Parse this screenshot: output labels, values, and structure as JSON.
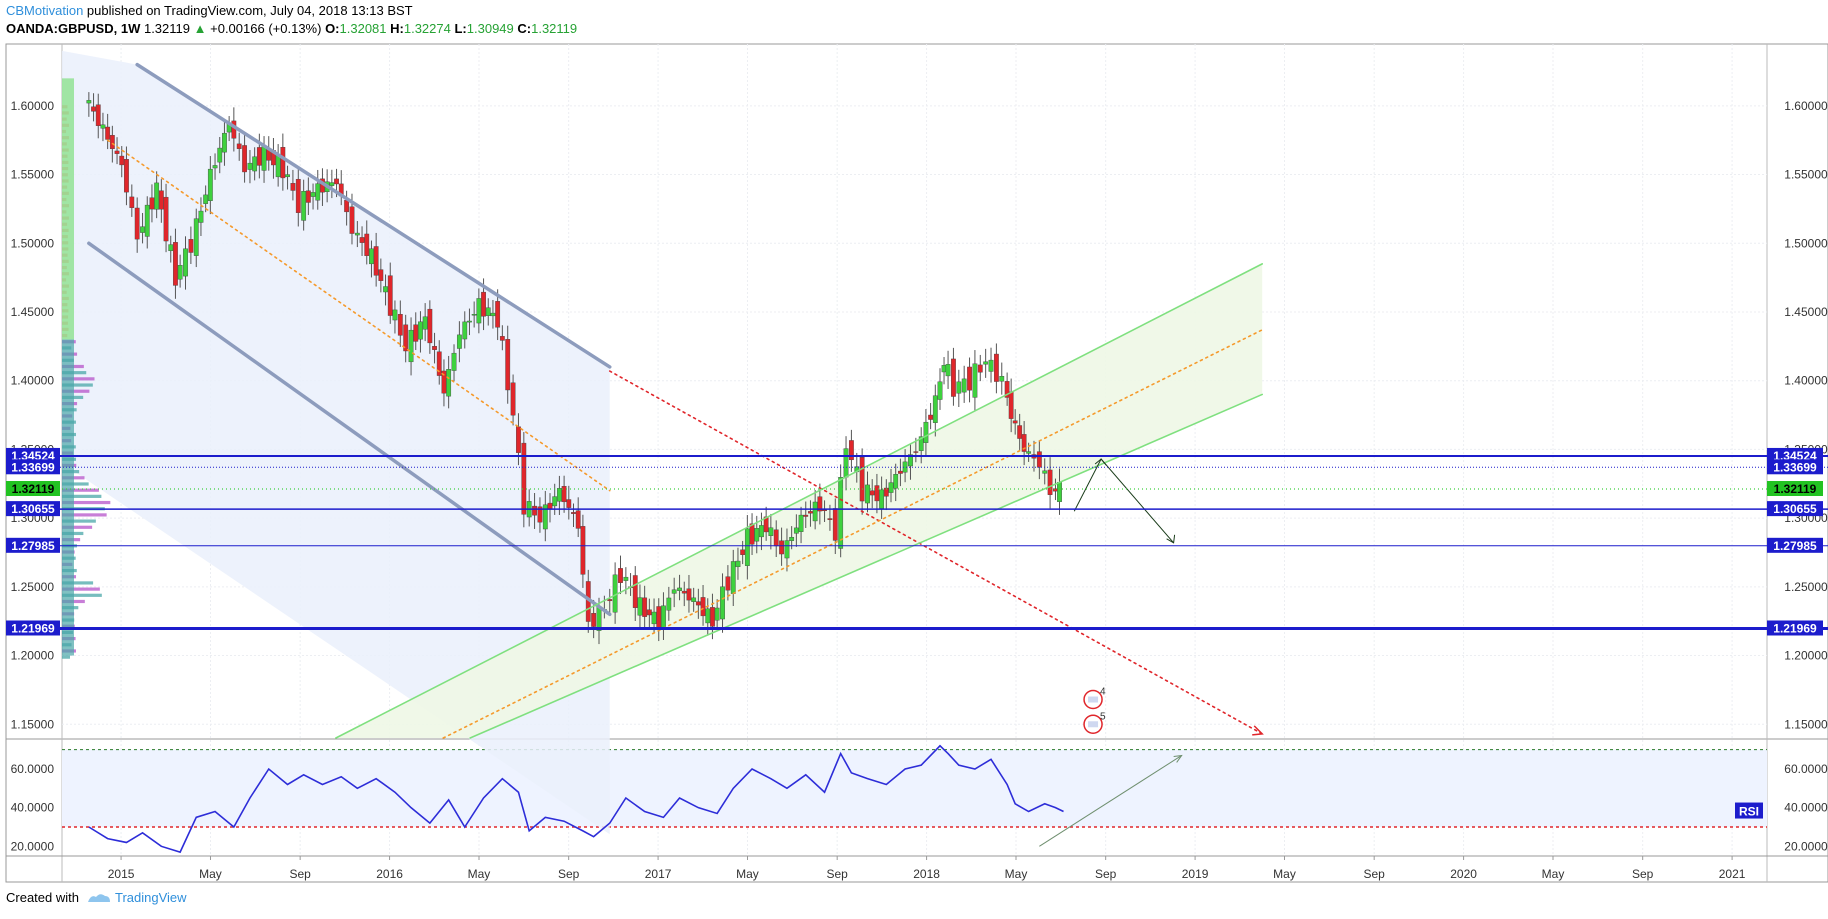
{
  "header": {
    "author": "CBMotivation",
    "published": " published on TradingView.com, July 04, 2018 13:13 BST",
    "symbol": "OANDA:GBPUSD, 1W",
    "last": "1.32119",
    "change": "+0.00166 (+0.13%)",
    "open_label": "O:",
    "open": "1.32081",
    "high_label": "H:",
    "high": "1.32274",
    "low_label": "L:",
    "low": "1.30949",
    "close_label": "C:",
    "close": "1.32119"
  },
  "footer": {
    "created_with": "Created with",
    "brand": "TradingView"
  },
  "colors": {
    "bull": "#3ed13e",
    "bear": "#e0262b",
    "hline": "#1c1ccc",
    "rsi": "#2d2dd8",
    "channel_down": "#8d9cbd",
    "channel_up": "#7fe07f",
    "midline": "#f59a2c",
    "trend_red": "#e0262b"
  },
  "chart_data": [
    {
      "type": "candlestick",
      "title": "OANDA:GBPUSD, 1W",
      "ylim": [
        1.14,
        1.645
      ],
      "x_start": "2014-11",
      "x_end": "2021-02",
      "x_ticks": [
        {
          "t": 2015.0,
          "label": "2015"
        },
        {
          "t": 2015.333,
          "label": "May"
        },
        {
          "t": 2015.667,
          "label": "Sep"
        },
        {
          "t": 2016.0,
          "label": "2016"
        },
        {
          "t": 2016.333,
          "label": "May"
        },
        {
          "t": 2016.667,
          "label": "Sep"
        },
        {
          "t": 2017.0,
          "label": "2017"
        },
        {
          "t": 2017.333,
          "label": "May"
        },
        {
          "t": 2017.667,
          "label": "Sep"
        },
        {
          "t": 2018.0,
          "label": "2018"
        },
        {
          "t": 2018.333,
          "label": "May"
        },
        {
          "t": 2018.667,
          "label": "Sep"
        },
        {
          "t": 2019.0,
          "label": "2019"
        },
        {
          "t": 2019.333,
          "label": "May"
        },
        {
          "t": 2019.667,
          "label": "Sep"
        },
        {
          "t": 2020.0,
          "label": "2020"
        },
        {
          "t": 2020.333,
          "label": "May"
        },
        {
          "t": 2020.667,
          "label": "Sep"
        },
        {
          "t": 2021.0,
          "label": "2021"
        }
      ],
      "y_ticks": [
        "1.15000",
        "1.20000",
        "1.25000",
        "1.30000",
        "1.35000",
        "1.40000",
        "1.45000",
        "1.50000",
        "1.55000",
        "1.60000"
      ],
      "y_tick_values": [
        1.15,
        1.2,
        1.25,
        1.3,
        1.35,
        1.4,
        1.45,
        1.5,
        1.55,
        1.6
      ],
      "price_levels": [
        {
          "value": 1.34524,
          "label": "1.34524",
          "style": "solid",
          "width": 2
        },
        {
          "value": 1.33699,
          "label": "1.33699",
          "style": "dotted",
          "width": 1
        },
        {
          "value": 1.32119,
          "label": "1.32119",
          "style": "current",
          "width": 1
        },
        {
          "value": 1.30655,
          "label": "1.30655",
          "style": "solid",
          "width": 1.5
        },
        {
          "value": 1.27985,
          "label": "1.27985",
          "style": "solid",
          "width": 1
        },
        {
          "value": 1.21969,
          "label": "1.21969",
          "style": "solid",
          "width": 3
        }
      ],
      "close_path": [
        [
          2014.88,
          1.607
        ],
        [
          2014.95,
          1.583
        ],
        [
          2015.02,
          1.557
        ],
        [
          2015.08,
          1.505
        ],
        [
          2015.15,
          1.54
        ],
        [
          2015.22,
          1.475
        ],
        [
          2015.28,
          1.5
        ],
        [
          2015.35,
          1.55
        ],
        [
          2015.42,
          1.588
        ],
        [
          2015.48,
          1.555
        ],
        [
          2015.55,
          1.565
        ],
        [
          2015.62,
          1.555
        ],
        [
          2015.68,
          1.528
        ],
        [
          2015.75,
          1.54
        ],
        [
          2015.82,
          1.545
        ],
        [
          2015.88,
          1.51
        ],
        [
          2015.95,
          1.49
        ],
        [
          2016.02,
          1.455
        ],
        [
          2016.08,
          1.425
        ],
        [
          2016.15,
          1.445
        ],
        [
          2016.22,
          1.392
        ],
        [
          2016.28,
          1.435
        ],
        [
          2016.35,
          1.455
        ],
        [
          2016.42,
          1.445
        ],
        [
          2016.48,
          1.375
        ],
        [
          2016.52,
          1.31
        ],
        [
          2016.58,
          1.3
        ],
        [
          2016.65,
          1.32
        ],
        [
          2016.72,
          1.295
        ],
        [
          2016.76,
          1.222
        ],
        [
          2016.82,
          1.235
        ],
        [
          2016.88,
          1.26
        ],
        [
          2016.95,
          1.235
        ],
        [
          2017.02,
          1.225
        ],
        [
          2017.08,
          1.25
        ],
        [
          2017.15,
          1.24
        ],
        [
          2017.22,
          1.225
        ],
        [
          2017.28,
          1.255
        ],
        [
          2017.35,
          1.285
        ],
        [
          2017.42,
          1.295
        ],
        [
          2017.48,
          1.275
        ],
        [
          2017.55,
          1.3
        ],
        [
          2017.62,
          1.31
        ],
        [
          2017.68,
          1.29
        ],
        [
          2017.72,
          1.355
        ],
        [
          2017.78,
          1.32
        ],
        [
          2017.85,
          1.315
        ],
        [
          2017.92,
          1.335
        ],
        [
          2017.98,
          1.35
        ],
        [
          2018.05,
          1.385
        ],
        [
          2018.08,
          1.415
        ],
        [
          2018.12,
          1.395
        ],
        [
          2018.18,
          1.4
        ],
        [
          2018.24,
          1.415
        ],
        [
          2018.3,
          1.4
        ],
        [
          2018.33,
          1.375
        ],
        [
          2018.38,
          1.35
        ],
        [
          2018.44,
          1.34
        ],
        [
          2018.48,
          1.32
        ],
        [
          2018.51,
          1.321
        ]
      ],
      "trendlines": [
        {
          "name": "down-channel-upper",
          "from": [
            2015.06,
            1.63
          ],
          "to": [
            2016.82,
            1.41
          ],
          "color": "channel_down"
        },
        {
          "name": "down-channel-lower",
          "from": [
            2014.88,
            1.5
          ],
          "to": [
            2016.82,
            1.23
          ],
          "color": "channel_down"
        },
        {
          "name": "down-channel-mid",
          "from": [
            2014.95,
            1.575
          ],
          "to": [
            2016.82,
            1.32
          ],
          "color": "midline",
          "dash": "dot"
        },
        {
          "name": "red-trend",
          "from": [
            2016.82,
            1.407
          ],
          "to": [
            2019.25,
            1.143
          ],
          "color": "trend_red",
          "dash": "dot"
        },
        {
          "name": "up-channel-upper",
          "from": [
            2015.8,
            1.14
          ],
          "to": [
            2019.25,
            1.485
          ],
          "color": "channel_up"
        },
        {
          "name": "up-channel-lower",
          "from": [
            2016.3,
            1.14
          ],
          "to": [
            2019.25,
            1.39
          ],
          "color": "channel_up"
        },
        {
          "name": "up-channel-mid",
          "from": [
            2016.2,
            1.14
          ],
          "to": [
            2019.25,
            1.437
          ],
          "color": "midline",
          "dash": "dot"
        }
      ],
      "projection": [
        [
          2018.55,
          1.305
        ],
        [
          2018.65,
          1.343
        ],
        [
          2018.92,
          1.282
        ]
      ],
      "events": [
        {
          "t": 2018.62,
          "v": 1.168,
          "label": "4"
        },
        {
          "t": 2018.62,
          "v": 1.15,
          "label": "5"
        }
      ]
    },
    {
      "type": "line",
      "title": "RSI",
      "badge": "RSI",
      "ylim": [
        15,
        75
      ],
      "y_ticks": [
        "20.0000",
        "40.0000",
        "60.0000"
      ],
      "y_tick_values": [
        20,
        40,
        60
      ],
      "levels": [
        70,
        30
      ],
      "series": [
        {
          "name": "RSI",
          "points": [
            [
              2014.88,
              30
            ],
            [
              2014.95,
              24
            ],
            [
              2015.02,
              22
            ],
            [
              2015.08,
              27
            ],
            [
              2015.15,
              20
            ],
            [
              2015.22,
              17
            ],
            [
              2015.28,
              35
            ],
            [
              2015.35,
              38
            ],
            [
              2015.42,
              30
            ],
            [
              2015.48,
              45
            ],
            [
              2015.55,
              60
            ],
            [
              2015.62,
              52
            ],
            [
              2015.68,
              57
            ],
            [
              2015.75,
              52
            ],
            [
              2015.82,
              56
            ],
            [
              2015.88,
              50
            ],
            [
              2015.95,
              55
            ],
            [
              2016.02,
              48
            ],
            [
              2016.08,
              40
            ],
            [
              2016.15,
              32
            ],
            [
              2016.22,
              44
            ],
            [
              2016.28,
              30
            ],
            [
              2016.35,
              45
            ],
            [
              2016.42,
              55
            ],
            [
              2016.48,
              48
            ],
            [
              2016.52,
              28
            ],
            [
              2016.58,
              35
            ],
            [
              2016.65,
              33
            ],
            [
              2016.72,
              28
            ],
            [
              2016.76,
              25
            ],
            [
              2016.82,
              32
            ],
            [
              2016.88,
              45
            ],
            [
              2016.95,
              38
            ],
            [
              2017.02,
              35
            ],
            [
              2017.08,
              45
            ],
            [
              2017.15,
              40
            ],
            [
              2017.22,
              37
            ],
            [
              2017.28,
              50
            ],
            [
              2017.35,
              60
            ],
            [
              2017.42,
              55
            ],
            [
              2017.48,
              50
            ],
            [
              2017.55,
              57
            ],
            [
              2017.62,
              48
            ],
            [
              2017.68,
              68
            ],
            [
              2017.72,
              58
            ],
            [
              2017.78,
              55
            ],
            [
              2017.85,
              52
            ],
            [
              2017.92,
              60
            ],
            [
              2017.98,
              62
            ],
            [
              2018.05,
              72
            ],
            [
              2018.08,
              68
            ],
            [
              2018.12,
              62
            ],
            [
              2018.18,
              60
            ],
            [
              2018.24,
              65
            ],
            [
              2018.3,
              52
            ],
            [
              2018.33,
              42
            ],
            [
              2018.38,
              38
            ],
            [
              2018.44,
              42
            ],
            [
              2018.48,
              40
            ],
            [
              2018.51,
              38
            ]
          ]
        }
      ],
      "projection": [
        [
          2018.42,
          20
        ],
        [
          2018.95,
          67
        ]
      ]
    }
  ]
}
